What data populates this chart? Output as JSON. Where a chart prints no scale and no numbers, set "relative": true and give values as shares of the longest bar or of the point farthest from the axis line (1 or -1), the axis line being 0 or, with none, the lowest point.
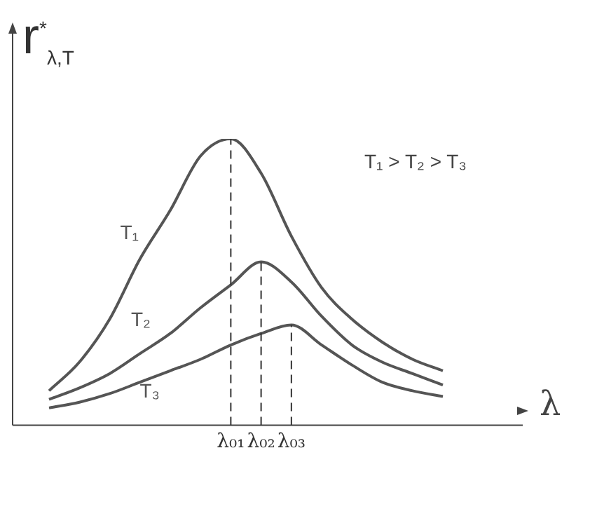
{
  "chart_data": {
    "type": "line",
    "relative": true,
    "ylabel": "r$^{*}$$_{λ,T}$",
    "xlabel": "λ",
    "categories": [
      null,
      null,
      null,
      null,
      null,
      null,
      "λ₀₁",
      "λ₀₂",
      "λ₀₃",
      null,
      null,
      null,
      null,
      null
    ],
    "series": [
      {
        "name": "T₁",
        "color": "#555555",
        "values": [
          0.12,
          0.22,
          0.37,
          0.58,
          0.75,
          0.94,
          1,
          0.88,
          0.66,
          0.48,
          0.37,
          0.29,
          0.23,
          0.19
        ]
      },
      {
        "name": "T₂",
        "color": "#555555",
        "values": [
          0.09,
          0.13,
          0.18,
          0.25,
          0.32,
          0.41,
          0.49,
          0.57,
          0.5,
          0.38,
          0.28,
          0.22,
          0.18,
          0.14
        ]
      },
      {
        "name": "T₃",
        "color": "#555555",
        "values": [
          0.06,
          0.08,
          0.11,
          0.15,
          0.19,
          0.23,
          0.28,
          0.32,
          0.35,
          0.28,
          0.21,
          0.15,
          0.12,
          0.1
        ]
      }
    ],
    "ref_lines": [
      {
        "axis": "x",
        "value": "λ₀₁",
        "line_style": "dashed"
      },
      {
        "axis": "x",
        "value": "λ₀₂",
        "line_style": "dashed"
      },
      {
        "axis": "x",
        "value": "λ₀₃",
        "line_style": "dashed"
      }
    ],
    "annotations": [
      "T₁ > T₂ > T₃"
    ],
    "grid": false,
    "legend": false,
    "marker": "none",
    "line_style": "solid"
  }
}
